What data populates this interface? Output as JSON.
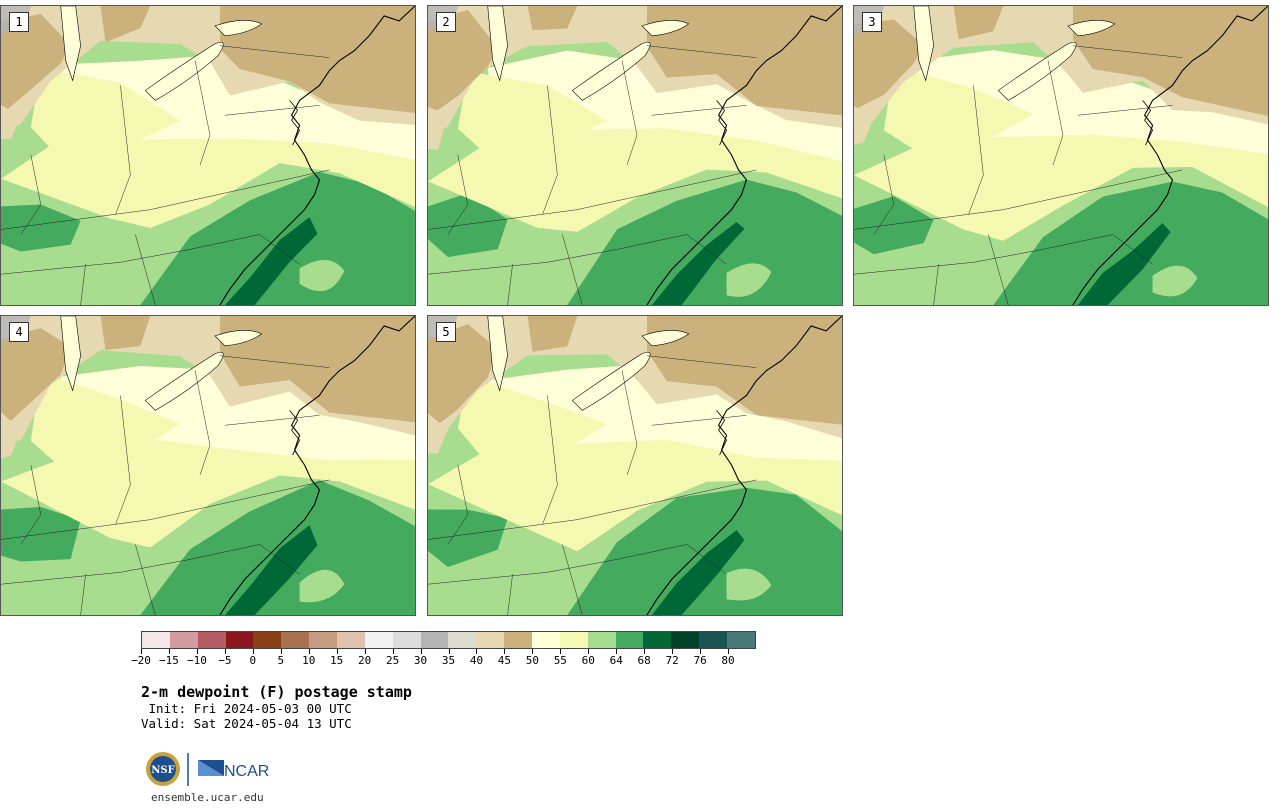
{
  "panels": [
    {
      "label": "1",
      "seed": 11
    },
    {
      "label": "2",
      "seed": 23
    },
    {
      "label": "3",
      "seed": 37
    },
    {
      "label": "4",
      "seed": 41
    },
    {
      "label": "5",
      "seed": 53
    }
  ],
  "colorbar": {
    "colors": [
      "#f3e6e6",
      "#d59aa0",
      "#b45b63",
      "#8c1620",
      "#8a4016",
      "#aa7350",
      "#c69a82",
      "#dec1ae",
      "#f2f2f2",
      "#dcdcdc",
      "#b4b4b4",
      "#dedccf",
      "#e6d9b2",
      "#cbb27c",
      "#fefed9",
      "#f5f8b0",
      "#a8dc8f",
      "#44ab5e",
      "#006837",
      "#00432a",
      "#1b5454",
      "#477979"
    ],
    "tick_labels": [
      "−20",
      "−15",
      "−10",
      "−5",
      "0",
      "5",
      "10",
      "15",
      "20",
      "25",
      "30",
      "35",
      "40",
      "45",
      "50",
      "55",
      "60",
      "64",
      "68",
      "72",
      "76",
      "80"
    ]
  },
  "title": "2-m dewpoint (F) postage stamp",
  "init": " Init: Fri 2024-05-03 00 UTC",
  "valid": "Valid: Sat 2024-05-04 13 UTC",
  "website": "ensemble.ucar.edu",
  "logos": {
    "nsf": "NSF",
    "ncar": "NCAR"
  },
  "map_colors": {
    "dry_tan": "#cbb27c",
    "light_tan": "#e6d9b2",
    "pale_yellow": "#fefed9",
    "yellow": "#f5f8b0",
    "light_green": "#a8dc8f",
    "green": "#44ab5e",
    "dark_green": "#006837",
    "gray": "#b4b4b4"
  }
}
